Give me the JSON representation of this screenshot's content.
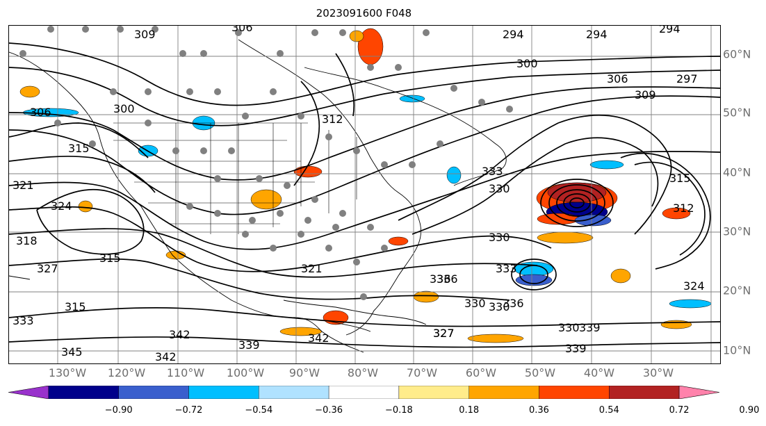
{
  "title": "2023091600 F048",
  "longitude_labels": [
    "130°W",
    "120°W",
    "110°W",
    "100°W",
    "90°W",
    "80°W",
    "70°W",
    "60°W",
    "50°W",
    "40°W",
    "30°W"
  ],
  "latitude_labels": [
    "60°N",
    "50°N",
    "40°N",
    "30°N",
    "20°N",
    "10°N"
  ],
  "colorbar": {
    "ticks": [
      "−0.90",
      "−0.72",
      "−0.54",
      "−0.36",
      "−0.18",
      "0.18",
      "0.36",
      "0.54",
      "0.72",
      "0.90"
    ],
    "colors": [
      "#9932cc",
      "#00008b",
      "#3a5fcd",
      "#00bfff",
      "#b0e2ff",
      "#ffffff",
      "#ffec8b",
      "#ffa500",
      "#ff4500",
      "#b22222",
      "#ff82ab"
    ]
  },
  "contour_labels": [
    "309",
    "306",
    "294",
    "294",
    "294",
    "300",
    "297",
    "306",
    "309",
    "312",
    "306",
    "300",
    "315",
    "321",
    "324",
    "315",
    "327",
    "318",
    "315",
    "321",
    "330",
    "339",
    "342",
    "345",
    "342",
    "333",
    "327",
    "336",
    "330",
    "330",
    "333",
    "339",
    "327",
    "333",
    "336",
    "330",
    "315",
    "312",
    "324",
    "330",
    "336",
    "339",
    "342"
  ],
  "colors": {
    "coastline": "#000000",
    "grid": "#808080",
    "contour": "#000000",
    "station_dot": "#808080"
  }
}
